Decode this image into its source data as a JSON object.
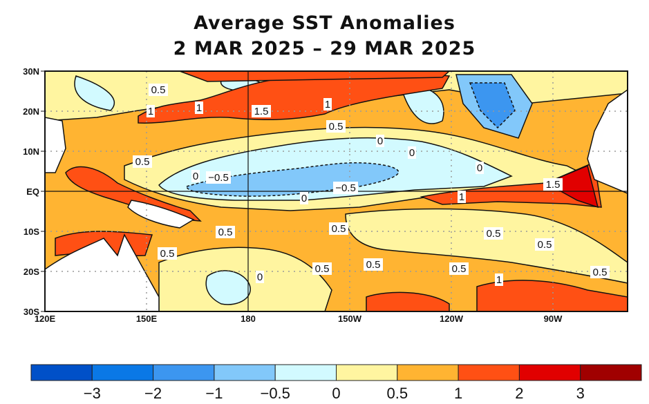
{
  "title": {
    "line1": "Average SST Anomalies",
    "line2": "2 MAR 2025 – 29 MAR 2025"
  },
  "axes": {
    "lat_labels": [
      "30N",
      "20N",
      "10N",
      "EQ",
      "10S",
      "20S",
      "30S"
    ],
    "lon_labels": [
      "120E",
      "150E",
      "180",
      "150W",
      "120W",
      "90W"
    ]
  },
  "contour_labels": [
    {
      "text": "0.5"
    },
    {
      "text": "1"
    },
    {
      "text": "1"
    },
    {
      "text": "1.5"
    },
    {
      "text": "1"
    },
    {
      "text": "0.5"
    },
    {
      "text": "0"
    },
    {
      "text": "0"
    },
    {
      "text": "0.5"
    },
    {
      "text": "0"
    },
    {
      "text": "−0.5"
    },
    {
      "text": "0"
    },
    {
      "text": "−0.5"
    },
    {
      "text": "1.5"
    },
    {
      "text": "1"
    },
    {
      "text": "0"
    },
    {
      "text": "0.5"
    },
    {
      "text": "0.5"
    },
    {
      "text": "0.5"
    },
    {
      "text": "0.5"
    },
    {
      "text": "0.5"
    },
    {
      "text": "0.5"
    },
    {
      "text": "0.5"
    },
    {
      "text": "0.5"
    },
    {
      "text": "1"
    },
    {
      "text": "0"
    },
    {
      "text": "0.5"
    }
  ],
  "colorbar": {
    "colors": [
      "#0050c8",
      "#0a78e6",
      "#3c96f0",
      "#82c8fa",
      "#d2faff",
      "#fff5a0",
      "#ffb432",
      "#ff5014",
      "#e10000",
      "#a00000"
    ],
    "labels": [
      "−3",
      "−2",
      "−1",
      "−0.5",
      "0",
      "0.5",
      "1",
      "2",
      "3"
    ]
  },
  "land_color": "#ffffff"
}
